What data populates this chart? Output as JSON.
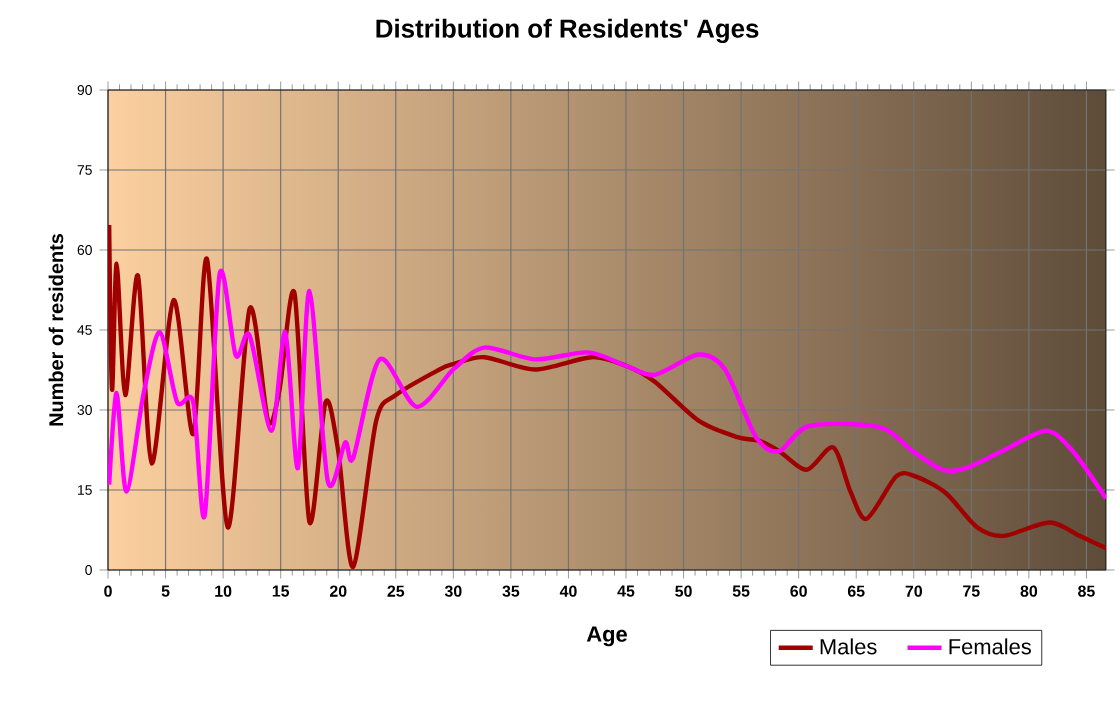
{
  "chart_data": {
    "type": "line",
    "title": "Distribution of Residents' Ages",
    "xlabel": "Age",
    "ylabel": "Number of residents",
    "xlim": [
      0,
      86.7
    ],
    "ylim": [
      0,
      90
    ],
    "xticks": [
      0,
      5,
      10,
      15,
      20,
      25,
      30,
      35,
      40,
      45,
      50,
      55,
      60,
      65,
      70,
      75,
      80,
      85
    ],
    "yticks": [
      0,
      15,
      30,
      45,
      60,
      75,
      90
    ],
    "grid": true,
    "legend": "bottom right",
    "marker": "none",
    "line_style": "solid",
    "series": [
      {
        "name": "Males",
        "color": "#a00000",
        "x": [
          0.1,
          0.35,
          0.75,
          1.5,
          2.6,
          3.8,
          5.7,
          7.4,
          8.6,
          10.4,
          12.3,
          13.9,
          14.9,
          16.2,
          17.5,
          18.9,
          20,
          21.3,
          23.3,
          25,
          28.8,
          30,
          32.7,
          37.1,
          42,
          45,
          47.5,
          51.3,
          54.7,
          56.6,
          58.3,
          60.7,
          63,
          64.5,
          65.9,
          68.5,
          70.2,
          72.8,
          75.5,
          77.8,
          81.8,
          84.4,
          86.7
        ],
        "values": [
          64.7,
          33.8,
          57.4,
          32.8,
          55.2,
          20,
          50.6,
          25.5,
          58.3,
          8,
          49,
          28,
          33.8,
          51.9,
          9,
          31.5,
          22.3,
          0.6,
          28,
          32.8,
          37.6,
          38.6,
          39.9,
          37.6,
          39.9,
          38.3,
          35.3,
          28,
          24.9,
          24.2,
          22.3,
          18.8,
          23,
          14.7,
          9.6,
          17.6,
          17.5,
          14.4,
          8,
          6.4,
          8.9,
          6.4,
          4.1
        ]
      },
      {
        "name": "Females",
        "color": "#ff00ff",
        "x": [
          0.1,
          0.75,
          1.6,
          3.1,
          4.5,
          6,
          7.4,
          8.4,
          9.7,
          11.1,
          12.3,
          14.2,
          15.4,
          16.5,
          17.5,
          19.1,
          20.6,
          21.3,
          23.6,
          26.8,
          30,
          32.7,
          37.1,
          41.7,
          45,
          47.5,
          51.3,
          53.6,
          56.3,
          58.3,
          60.9,
          67,
          69.9,
          72.5,
          74.5,
          77.7,
          81.5,
          83.8,
          86.7
        ],
        "values": [
          16,
          33.2,
          14.7,
          33.2,
          44.6,
          31.5,
          31.5,
          10.2,
          55.5,
          40.2,
          44,
          26.1,
          44.6,
          19.1,
          52.3,
          16.6,
          23.9,
          21,
          39.5,
          30.6,
          37.6,
          41.7,
          39.5,
          40.8,
          38.3,
          36.6,
          40.4,
          37.6,
          24.9,
          22.3,
          27,
          26.8,
          22.3,
          18.8,
          19.1,
          22.3,
          26.1,
          22.3,
          13.4
        ]
      }
    ]
  }
}
